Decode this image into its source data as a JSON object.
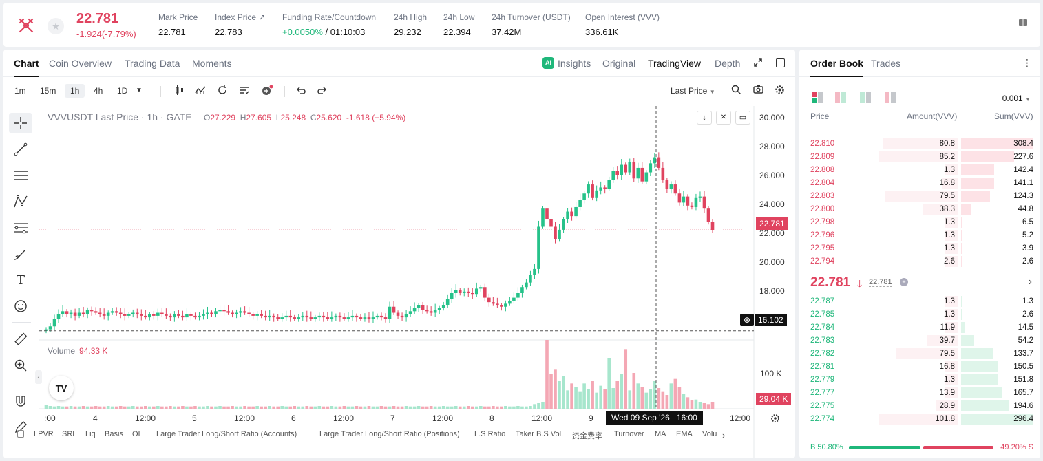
{
  "ticker": {
    "price": "22.781",
    "change": "-1.924(-7.79%)",
    "stats": [
      {
        "label": "Mark Price",
        "value": "22.781"
      },
      {
        "label": "Index Price ↗",
        "value": "22.783"
      },
      {
        "label": "Funding Rate/Countdown",
        "value_green": "+0.0050%",
        "value": " / 01:10:03"
      },
      {
        "label": "24h High",
        "value": "29.232"
      },
      {
        "label": "24h Low",
        "value": "22.394"
      },
      {
        "label": "24h Turnover (USDT)",
        "value": "37.42M"
      },
      {
        "label": "Open Interest (VVV)",
        "value": "336.61K"
      }
    ]
  },
  "chart_tabs": [
    "Chart",
    "Coin Overview",
    "Trading Data",
    "Moments"
  ],
  "view_tabs": [
    "Insights",
    "Original",
    "TradingView",
    "Depth"
  ],
  "timeframes": [
    "1m",
    "15m",
    "1h",
    "4h",
    "1D"
  ],
  "last_price_select": "Last Price",
  "legend": {
    "symbol": "VVVUSDT Last Price · 1h · GATE",
    "o_lbl": "O",
    "o": "27.229",
    "h_lbl": "H",
    "h": "27.605",
    "l_lbl": "L",
    "l": "25.248",
    "c_lbl": "C",
    "c": "25.620",
    "chg": "-1.618 (−5.94%)"
  },
  "volume": {
    "label": "Volume",
    "value": "94.33 K"
  },
  "price_axis": [
    "30.000",
    "28.000",
    "26.000",
    "24.000",
    "22.000",
    "20.000",
    "18.000",
    "16.000"
  ],
  "vol_axis": "100 K",
  "price_tag": "22.781",
  "cross_tag": "16.102",
  "vol_tag": "29.04 K",
  "time_axis": [
    ":00",
    "4",
    "12:00",
    "5",
    "12:00",
    "6",
    "12:00",
    "7",
    "12:00",
    "8",
    "12:00",
    "9",
    "12:00"
  ],
  "time_cursor": "Wed 09 Sep '26   16:00",
  "indicators": [
    "LPVR",
    "SRL",
    "Liq",
    "Basis",
    "OI",
    "Large Trader Long/Short Ratio (Accounts)",
    "Large Trader Long/Short Ratio (Positions)",
    "L.S Ratio",
    "Taker B.S Vol.",
    "资金费率",
    "Turnover",
    "MA",
    "EMA",
    "Volu"
  ],
  "orderbook": {
    "tabs": [
      "Order Book",
      "Trades"
    ],
    "precision": "0.001",
    "headers": {
      "price": "Price",
      "amount": "Amount(VVV)",
      "sum": "Sum(VVV)"
    },
    "asks": [
      {
        "p": "22.810",
        "a": "80.8",
        "s": "308.4"
      },
      {
        "p": "22.809",
        "a": "85.2",
        "s": "227.6"
      },
      {
        "p": "22.808",
        "a": "1.3",
        "s": "142.4"
      },
      {
        "p": "22.804",
        "a": "16.8",
        "s": "141.1"
      },
      {
        "p": "22.803",
        "a": "79.5",
        "s": "124.3"
      },
      {
        "p": "22.800",
        "a": "38.3",
        "s": "44.8"
      },
      {
        "p": "22.798",
        "a": "1.3",
        "s": "6.5"
      },
      {
        "p": "22.796",
        "a": "1.3",
        "s": "5.2"
      },
      {
        "p": "22.795",
        "a": "1.3",
        "s": "3.9"
      },
      {
        "p": "22.794",
        "a": "2.6",
        "s": "2.6"
      }
    ],
    "last": "22.781",
    "mark": "22.781",
    "bids": [
      {
        "p": "22.787",
        "a": "1.3",
        "s": "1.3"
      },
      {
        "p": "22.785",
        "a": "1.3",
        "s": "2.6"
      },
      {
        "p": "22.784",
        "a": "11.9",
        "s": "14.5"
      },
      {
        "p": "22.783",
        "a": "39.7",
        "s": "54.2"
      },
      {
        "p": "22.782",
        "a": "79.5",
        "s": "133.7"
      },
      {
        "p": "22.781",
        "a": "16.8",
        "s": "150.5"
      },
      {
        "p": "22.779",
        "a": "1.3",
        "s": "151.8"
      },
      {
        "p": "22.777",
        "a": "13.9",
        "s": "165.7"
      },
      {
        "p": "22.775",
        "a": "28.9",
        "s": "194.6"
      },
      {
        "p": "22.774",
        "a": "101.8",
        "s": "296.4"
      }
    ],
    "buy_ratio": "B 50.80%",
    "sell_ratio": "49.20% S"
  },
  "chart_data": {
    "type": "candlestick",
    "ylim": [
      15.5,
      31
    ],
    "closes": [
      16.2,
      16.4,
      16.9,
      17.2,
      17.4,
      17.2,
      17.3,
      17.1,
      17.3,
      17.2,
      17.5,
      17.4,
      17.3,
      17.2,
      17.1,
      17.3,
      17.4,
      17.3,
      17.2,
      17.1,
      17.2,
      17.3,
      17.2,
      17.1,
      17.0,
      17.2,
      17.1,
      17.3,
      17.2,
      17.1,
      17.0,
      17.2,
      17.1,
      17.0,
      17.2,
      17.1,
      17.0,
      17.1,
      17.2,
      17.3,
      17.2,
      17.4,
      17.5,
      17.4,
      17.3,
      17.2,
      17.3,
      17.4,
      17.3,
      17.2,
      17.1,
      17.2,
      17.1,
      17.0,
      17.1,
      17.0,
      16.9,
      17.0,
      17.1,
      17.0,
      16.9,
      17.0,
      17.1,
      17.0,
      16.9,
      17.0,
      17.1,
      17.0,
      16.9,
      17.0,
      17.1,
      17.0,
      16.9,
      17.0,
      17.1,
      17.0,
      16.9,
      17.0,
      16.9,
      17.0,
      17.1,
      17.0,
      16.9,
      17.7,
      17.3,
      17.1,
      17.0,
      17.2,
      17.4,
      17.6,
      17.8,
      17.5,
      17.4,
      17.3,
      17.5,
      17.6,
      17.8,
      18.2,
      18.6,
      18.8,
      18.6,
      18.7,
      18.6,
      18.5,
      18.9,
      19.0,
      18.3,
      18.0,
      17.9,
      17.8,
      17.7,
      17.9,
      18.1,
      18.3,
      18.6,
      19.0,
      19.3,
      19.8,
      20.2,
      23.0,
      24.2,
      23.5,
      23.0,
      22.2,
      22.8,
      23.5,
      24.0,
      23.7,
      24.3,
      24.8,
      25.2,
      25.8,
      24.9,
      25.4,
      25.6,
      25.5,
      26.1,
      26.7,
      26.4,
      27.1,
      26.6,
      27.3,
      26.2,
      26.9,
      26.0,
      26.6,
      27.2,
      27.6,
      26.9,
      26.1,
      25.5,
      25.8,
      25.2,
      24.6,
      25.0,
      24.4,
      24.3,
      24.9,
      25.0,
      24.2,
      23.3,
      22.78
    ],
    "volumes": [
      8,
      6,
      5,
      6,
      5,
      5,
      6,
      5,
      5,
      6,
      5,
      5,
      6,
      5,
      5,
      6,
      5,
      5,
      6,
      5,
      5,
      6,
      5,
      5,
      6,
      5,
      5,
      6,
      5,
      5,
      6,
      5,
      5,
      6,
      5,
      5,
      6,
      5,
      5,
      6,
      5,
      5,
      6,
      5,
      5,
      6,
      5,
      5,
      6,
      5,
      5,
      6,
      5,
      5,
      6,
      5,
      5,
      6,
      5,
      5,
      6,
      5,
      5,
      6,
      5,
      5,
      6,
      5,
      5,
      6,
      5,
      5,
      6,
      5,
      5,
      6,
      5,
      5,
      6,
      5,
      5,
      6,
      5,
      5,
      6,
      5,
      5,
      6,
      5,
      5,
      6,
      5,
      5,
      6,
      5,
      5,
      6,
      5,
      5,
      6,
      5,
      5,
      6,
      5,
      5,
      6,
      5,
      5,
      6,
      5,
      5,
      6,
      5,
      5,
      6,
      5,
      5,
      6,
      10,
      12,
      15,
      150,
      75,
      85,
      60,
      72,
      40,
      55,
      48,
      38,
      55,
      42,
      60,
      35,
      50,
      42,
      110,
      45,
      60,
      75,
      130,
      40,
      78,
      55,
      48,
      35,
      42,
      60,
      45,
      38,
      30,
      55,
      65,
      48,
      32,
      25,
      18,
      20,
      15,
      12,
      10,
      15,
      12
    ]
  }
}
